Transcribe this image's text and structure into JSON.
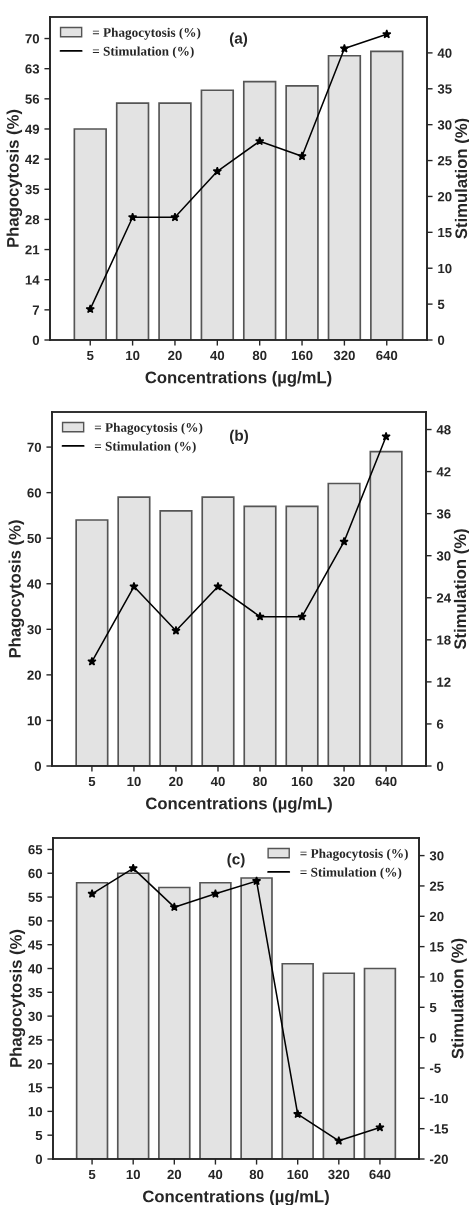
{
  "chart_data": [
    {
      "type": "bar",
      "title": "(a)",
      "xlabel": "Concentrations (µg/mL)",
      "ylabel": "Phagocytosis (%)",
      "y2label": "Stimulation (%)",
      "categories": [
        "5",
        "10",
        "20",
        "40",
        "80",
        "160",
        "320",
        "640"
      ],
      "series": [
        {
          "name": "= Phagocytosis (%)",
          "color": "#e3e3e3",
          "values": [
            49,
            55,
            55,
            58,
            60,
            59,
            66,
            67
          ]
        },
        {
          "name": "= Stimulation (%)",
          "type": "line",
          "axis": "y2",
          "color": "#000000",
          "marker": "star",
          "values": [
            4.3,
            17.1,
            17.1,
            23.5,
            27.7,
            25.6,
            40.6,
            42.6
          ]
        }
      ],
      "ylim": [
        0,
        75
      ],
      "yticks": [
        0,
        7,
        14,
        21,
        28,
        35,
        42,
        49,
        56,
        63,
        70
      ],
      "y2lim": [
        0,
        45
      ],
      "y2ticks": [
        0,
        5,
        10,
        15,
        20,
        25,
        30,
        35,
        40
      ],
      "legend": "top left",
      "grid": false
    },
    {
      "type": "bar",
      "title": "(b)",
      "xlabel": "Concentrations (µg/mL)",
      "ylabel": "Phagocytosis (%)",
      "y2label": "Stimulation (%)",
      "categories": [
        "5",
        "10",
        "20",
        "40",
        "80",
        "160",
        "320",
        "640"
      ],
      "series": [
        {
          "name": "= Phagocytosis (%)",
          "color": "#e3e3e3",
          "values": [
            54,
            59,
            56,
            59,
            57,
            57,
            62,
            69
          ]
        },
        {
          "name": "= Stimulation (%)",
          "type": "line",
          "axis": "y2",
          "color": "#000000",
          "marker": "star",
          "values": [
            14.9,
            25.6,
            19.3,
            25.6,
            21.3,
            21.3,
            32.0,
            47.0
          ]
        }
      ],
      "ylim": [
        0,
        77.7
      ],
      "yticks": [
        0,
        10,
        20,
        30,
        40,
        50,
        60,
        70
      ],
      "y2lim": [
        0,
        50.5
      ],
      "y2ticks": [
        0,
        6,
        12,
        18,
        24,
        30,
        36,
        42,
        48
      ],
      "legend": "top left",
      "grid": false
    },
    {
      "type": "bar",
      "title": "(c)",
      "xlabel": "Concentrations (µg/mL)",
      "ylabel": "Phagocytosis (%)",
      "y2label": "Stimulation (%)",
      "categories": [
        "5",
        "10",
        "20",
        "40",
        "80",
        "160",
        "320",
        "640"
      ],
      "series": [
        {
          "name": "= Phagocytosis (%)",
          "color": "#e3e3e3",
          "values": [
            58,
            60,
            57,
            58,
            59,
            41,
            39,
            40
          ]
        },
        {
          "name": "= Stimulation (%)",
          "type": "line",
          "axis": "y2",
          "color": "#000000",
          "marker": "star",
          "values": [
            23.7,
            27.9,
            21.5,
            23.7,
            25.8,
            -12.6,
            -17.0,
            -14.8
          ]
        }
      ],
      "ylim": [
        0,
        67.4
      ],
      "yticks": [
        0,
        5,
        10,
        15,
        20,
        25,
        30,
        35,
        40,
        45,
        50,
        55,
        60,
        65
      ],
      "y2lim": [
        -20,
        32.9
      ],
      "y2ticks": [
        -20,
        -15,
        -10,
        -5,
        0,
        5,
        10,
        15,
        20,
        25,
        30
      ],
      "legend": "top right",
      "grid": false
    }
  ]
}
